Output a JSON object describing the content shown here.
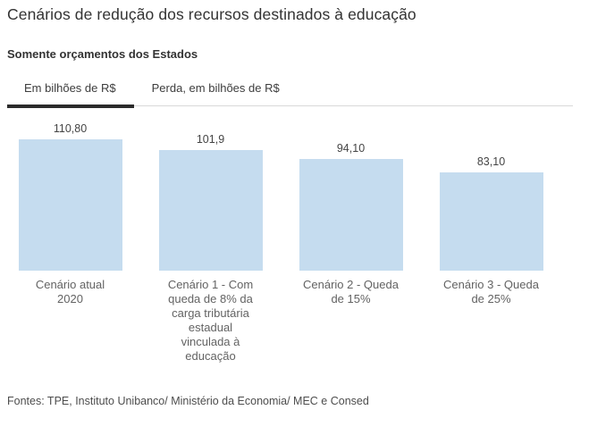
{
  "header": {
    "title": "Cenários de redução dos recursos destinados à educação",
    "subtitle": "Somente orçamentos dos Estados"
  },
  "tabs": [
    {
      "id": "em-bilhoes",
      "label": "Em bilhões de R$",
      "active": true
    },
    {
      "id": "perda-em-bilhoes",
      "label": "Perda, em bilhões de R$",
      "active": false
    }
  ],
  "chart_data": {
    "type": "bar",
    "title": "Cenários de redução dos recursos destinados à educação",
    "subtitle": "Somente orçamentos dos Estados",
    "active_view": "Em bilhões de R$",
    "categories": [
      "Cenário atual 2020",
      "Cenário 1 - Com queda de 8% da carga tributária estadual vinculada à educação",
      "Cenário 2 - Queda de 15%",
      "Cenário 3 - Queda de 25%"
    ],
    "category_lines": [
      [
        "Cenário atual",
        "2020"
      ],
      [
        "Cenário 1 - Com",
        "queda de 8% da",
        "carga tributária",
        "estadual",
        "vinculada à",
        "educação"
      ],
      [
        "Cenário 2 - Queda",
        "de 15%"
      ],
      [
        "Cenário 3 - Queda",
        "de 25%"
      ]
    ],
    "values": [
      110.8,
      101.9,
      94.1,
      83.1
    ],
    "value_labels": [
      "110,80",
      "101,9",
      "94,10",
      "83,10"
    ],
    "xlabel": "",
    "ylabel": "Em bilhões de R$",
    "ylim": [
      0,
      110.8
    ],
    "grid": false,
    "legend": false,
    "bar_color": "#c5dcef"
  },
  "colors": {
    "bar_fill": "#c5dcef",
    "active_tab_underline": "#2b2b2b",
    "tab_divider": "#d9d9d9",
    "title_text": "#333333",
    "category_text": "#636363",
    "value_text": "#444444",
    "footer_text": "#4d4d4d"
  },
  "footer": {
    "source": "Fontes: TPE, Instituto Unibanco/ Ministério da Economia/ MEC e Consed"
  }
}
